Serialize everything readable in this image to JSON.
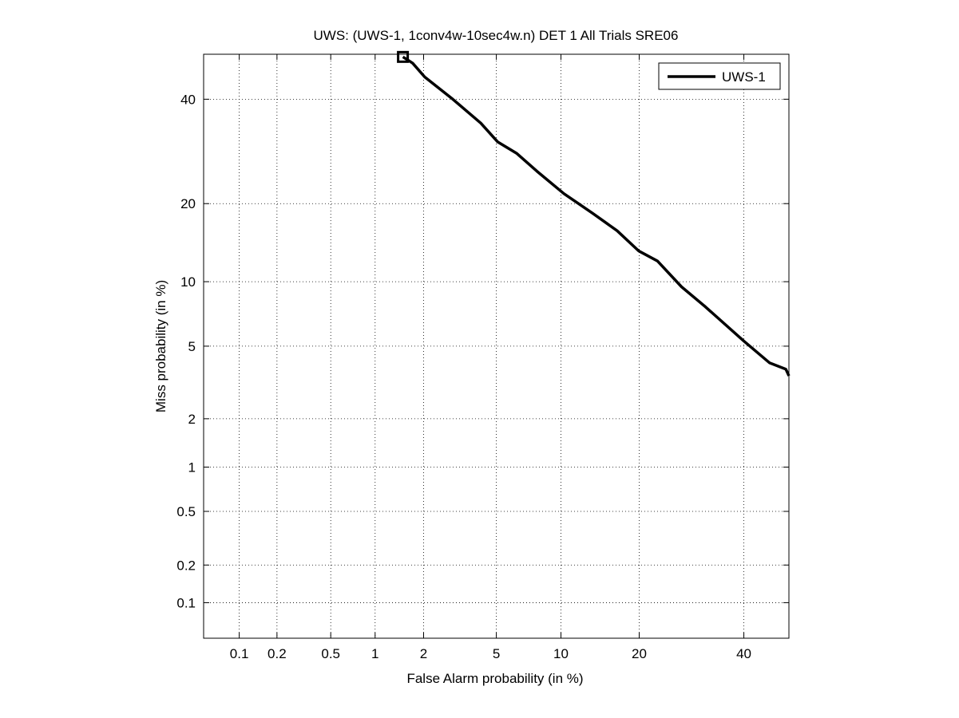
{
  "chart_data": {
    "type": "line",
    "title": "UWS: (UWS-1, 1conv4w-10sec4w.n) DET 1 All Trials SRE06",
    "xlabel": "False Alarm probability (in %)",
    "ylabel": "Miss probability (in %)",
    "xscale": "probit",
    "yscale": "probit",
    "xlim": [
      0.05,
      50
    ],
    "ylim": [
      0.05,
      50
    ],
    "xticks": [
      0.1,
      0.2,
      0.5,
      1,
      2,
      5,
      10,
      20,
      40
    ],
    "xtick_labels": [
      "0.1",
      "0.2",
      "0.5",
      "1",
      "2",
      "5",
      "10",
      "20",
      "40"
    ],
    "yticks": [
      0.1,
      0.2,
      0.5,
      1,
      2,
      5,
      10,
      20,
      40
    ],
    "ytick_labels": [
      "0.1",
      "0.2",
      "0.5",
      "1",
      "2",
      "5",
      "10",
      "20",
      "40"
    ],
    "grid": true,
    "legend": {
      "position": "top-right",
      "entries": [
        "UWS-1"
      ]
    },
    "series": [
      {
        "name": "UWS-1",
        "color": "#000000",
        "x": [
          1.5,
          1.72,
          2.03,
          2.94,
          4.16,
          5.07,
          6.31,
          7.83,
          10.3,
          13.5,
          16.7,
          19.9,
          23.0,
          27.3,
          31.9,
          40.0,
          45.7,
          49.3,
          50.0
        ],
        "y": [
          49.4,
          48.0,
          44.9,
          40.0,
          34.9,
          31.1,
          28.8,
          25.5,
          21.6,
          18.5,
          16.0,
          13.4,
          12.2,
          9.5,
          7.75,
          5.3,
          4.1,
          3.8,
          3.5
        ],
        "marker_point": {
          "x": 1.5,
          "y": 49.4
        }
      }
    ]
  }
}
